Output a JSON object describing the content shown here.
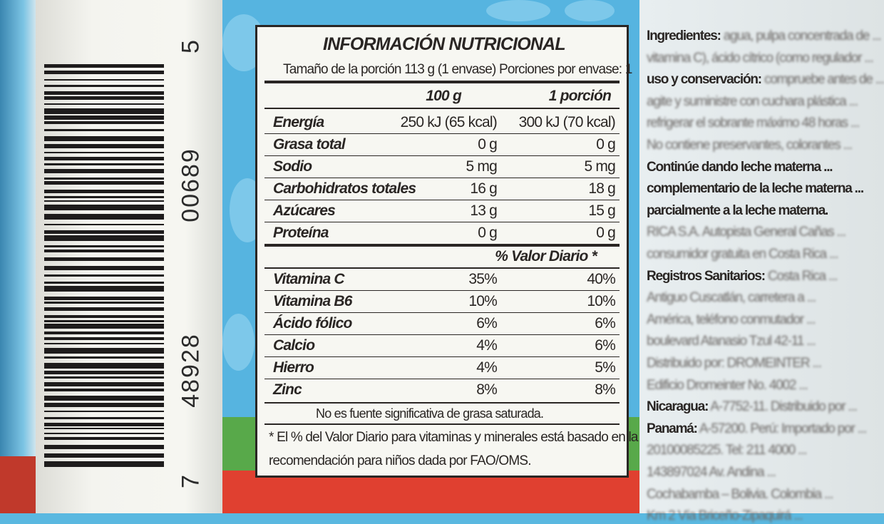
{
  "barcode": {
    "digits": [
      "7",
      "48928",
      "00689",
      "5"
    ]
  },
  "label": {
    "title": "INFORMACIÓN NUTRICIONAL",
    "serving": "Tamaño de la porción 113 g (1 envase)  Porciones por envase: 1",
    "col1": "100 g",
    "col2": "1 porción",
    "nutrients": [
      {
        "name": "Energía",
        "v1": "250 kJ (65 kcal)",
        "v2": "300 kJ (70 kcal)"
      },
      {
        "name": "Grasa total",
        "v1": "0 g",
        "v2": "0 g"
      },
      {
        "name": "Sodio",
        "v1": "5 mg",
        "v2": "5 mg"
      },
      {
        "name": "Carbohidratos totales",
        "v1": "16 g",
        "v2": "18 g"
      },
      {
        "name": "Azúcares",
        "v1": "13 g",
        "v2": "15 g"
      },
      {
        "name": "Proteína",
        "v1": "0 g",
        "v2": "0 g"
      }
    ],
    "dv_header": "% Valor Diario *",
    "vitamins": [
      {
        "name": "Vitamina C",
        "v1": "35%",
        "v2": "40%"
      },
      {
        "name": "Vitamina B6",
        "v1": "10%",
        "v2": "10%"
      },
      {
        "name": "Ácido fólico",
        "v1": "6%",
        "v2": "6%"
      },
      {
        "name": "Calcio",
        "v1": "4%",
        "v2": "6%"
      },
      {
        "name": "Hierro",
        "v1": "4%",
        "v2": "5%"
      },
      {
        "name": "Zinc",
        "v1": "8%",
        "v2": "8%"
      }
    ],
    "note": "No es fuente significativa de grasa saturada.",
    "footnote1": "* El % del Valor Diario para vitaminas y minerales está basado en la",
    "footnote2": "recomendación para niños dada por FAO/OMS."
  },
  "side": {
    "lines": [
      {
        "bold": "Ingredientes:",
        "text": " agua, pulpa concentrada de ...",
        "blur": ""
      },
      {
        "bold": "",
        "text": "vitamina C), ácido cítrico (como regulador ...",
        "blur": ""
      },
      {
        "bold": "uso y conservación:",
        "text": " compruebe antes de ...",
        "blur": ""
      },
      {
        "bold": "",
        "text": "agite y suministre con cuchara plástica ...",
        "blur": ""
      },
      {
        "bold": "",
        "text": "refrigerar el sobrante máximo 48 horas ...",
        "blur": ""
      },
      {
        "bold": "",
        "text": "No contiene preservantes, colorantes ...",
        "blur": ""
      },
      {
        "bold": "Continúe   dando   leche   materna ...",
        "text": "",
        "blur": ""
      },
      {
        "bold": "complementario de la leche materna ...",
        "text": "",
        "blur": ""
      },
      {
        "bold": "parcialmente a la leche materna.",
        "text": "",
        "blur": ""
      },
      {
        "bold": "",
        "text": "RICA S.A. Autopista General Cañas ...",
        "blur": ""
      },
      {
        "bold": "",
        "text": "consumidor gratuita en Costa Rica ...",
        "blur": ""
      },
      {
        "bold": "Registros Sanitarios:",
        "text": " Costa Rica ...",
        "blur": ""
      },
      {
        "bold": "",
        "text": "Antiguo Cuscatlán, carretera a ...",
        "blur": ""
      },
      {
        "bold": "",
        "text": "América, teléfono conmutador ...",
        "blur": ""
      },
      {
        "bold": "",
        "text": "boulevard Atanasio Tzul 42-11 ...",
        "blur": ""
      },
      {
        "bold": "",
        "text": "Distribuido por: DROMEINTER ...",
        "blur": ""
      },
      {
        "bold": "",
        "text": "Edificio Dromeinter No. 4002 ...",
        "blur": ""
      },
      {
        "bold": "Nicaragua:",
        "text": " A-7752-11. Distribuido por ...",
        "blur": ""
      },
      {
        "bold": "Panamá:",
        "text": " A-57200. Perú: Importado por ...",
        "blur": ""
      },
      {
        "bold": "",
        "text": "20100085225. Tel: 211 4000 ...",
        "blur": ""
      },
      {
        "bold": "",
        "text": "143897024 Av. Andina ...",
        "blur": ""
      },
      {
        "bold": "",
        "text": "Cochabamba – Bolivia. Colombia ...",
        "blur": ""
      },
      {
        "bold": "",
        "text": "Km 2 Vía Briceño-Zipaquirá ...",
        "blur": ""
      }
    ]
  }
}
